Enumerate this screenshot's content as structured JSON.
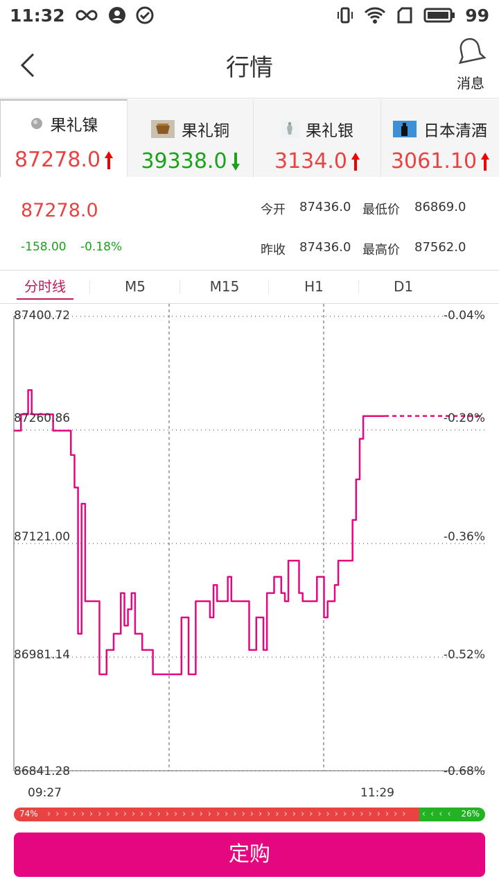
{
  "status_bar": {
    "time": "11:32",
    "battery": "99"
  },
  "header": {
    "title": "行情",
    "message_label": "消息"
  },
  "product_tabs": [
    {
      "name": "果礼镍",
      "price": "87278.0",
      "direction": "up",
      "icon": "nickel-ball-icon"
    },
    {
      "name": "果礼铜",
      "price": "39338.0",
      "direction": "down",
      "icon": "copper-bowl-icon"
    },
    {
      "name": "果礼银",
      "price": "3134.0",
      "direction": "up",
      "icon": "silver-statue-icon"
    },
    {
      "name": "日本清酒",
      "price": "3061.10",
      "direction": "up",
      "icon": "sake-bottle-icon"
    }
  ],
  "quote": {
    "price": "87278.0",
    "change": "-158.00",
    "change_pct": "-0.18%",
    "open_label": "今开",
    "open": "87436.0",
    "low_label": "最低价",
    "low": "86869.0",
    "prev_close_label": "昨收",
    "prev_close": "87436.0",
    "high_label": "最高价",
    "high": "87562.0"
  },
  "period_tabs": [
    "分时线",
    "M5",
    "M15",
    "H1",
    "D1"
  ],
  "active_period": 0,
  "chart_data": {
    "type": "line",
    "y_ticks": [
      "87400.72",
      "87260.86",
      "87121.00",
      "86981.14",
      "86841.28"
    ],
    "pct_ticks": [
      "-0.04%",
      "-0.20%",
      "-0.36%",
      "-0.52%",
      "-0.68%"
    ],
    "x_ticks": [
      "09:27",
      "11:29"
    ],
    "ylim": [
      86841.28,
      87400.72
    ],
    "grid": true,
    "color": "#e4077f",
    "current_value": 87278.0,
    "series": [
      {
        "values": [
          87260,
          87260,
          87280,
          87280,
          87310,
          87280,
          87280,
          87280,
          87280,
          87280,
          87280,
          87260,
          87260,
          87260,
          87260,
          87260,
          87230,
          87190,
          87010,
          87170,
          87050,
          87050,
          87050,
          87050,
          86960,
          86960,
          86990,
          86990,
          87010,
          87010,
          87060,
          87020,
          87040,
          87060,
          87010,
          87010,
          86990,
          86990,
          86990,
          86960,
          86960,
          86960,
          86960,
          86960,
          86960,
          86960,
          86960,
          87030,
          87030,
          86960,
          86960,
          87050,
          87050,
          87050,
          87050,
          87030,
          87070,
          87050,
          87050,
          87050,
          87080,
          87050,
          87050,
          87050,
          87050,
          87050,
          86990,
          86990,
          87030,
          87030,
          86990,
          87060,
          87060,
          87080,
          87080,
          87060,
          87050,
          87100,
          87100,
          87100,
          87060,
          87050,
          87050,
          87050,
          87050,
          87080,
          87080,
          87030,
          87050,
          87050,
          87070,
          87100,
          87100,
          87100,
          87100,
          87150,
          87200,
          87250,
          87278,
          87278,
          87278,
          87278,
          87278,
          87278,
          87278
        ]
      }
    ]
  },
  "ratio": {
    "buy_pct": 74,
    "sell_pct": 26,
    "buy_label": "74%",
    "sell_label": "26%"
  },
  "action_button": "定购",
  "colors": {
    "up": "#e94242",
    "down": "#1aa31a",
    "accent": "#e4077f"
  }
}
